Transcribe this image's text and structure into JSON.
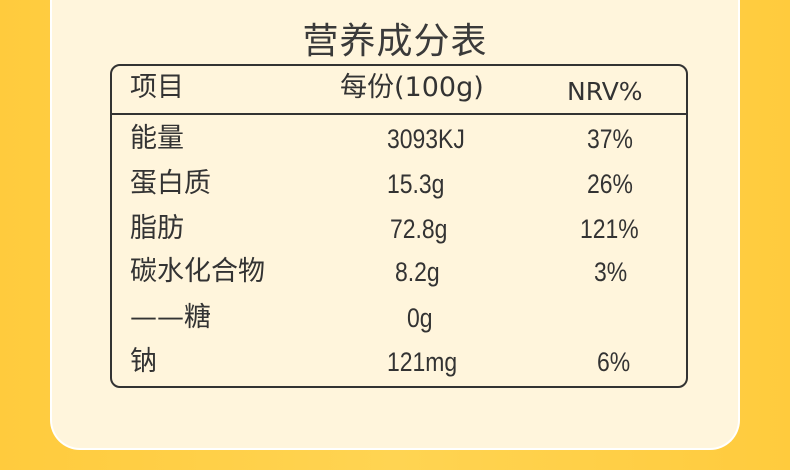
{
  "title": "营养成分表",
  "table": {
    "headers": [
      "项目",
      "每份(100g)",
      "NRV%"
    ],
    "rows": [
      {
        "item": "能量",
        "per_serving": "3093KJ",
        "nrv": "37%"
      },
      {
        "item": "蛋白质",
        "per_serving": "15.3g",
        "nrv": "26%"
      },
      {
        "item": "脂肪",
        "per_serving": "72.8g",
        "nrv": "121%"
      },
      {
        "item": "碳水化合物",
        "per_serving": "8.2g",
        "nrv": "3%"
      },
      {
        "item": "——糖",
        "per_serving": "0g",
        "nrv": ""
      },
      {
        "item": "钠",
        "per_serving": "121mg",
        "nrv": "6%"
      }
    ]
  },
  "colors": {
    "background": "#FFCF48",
    "card": "#FFF5DC",
    "border": "#333333"
  }
}
